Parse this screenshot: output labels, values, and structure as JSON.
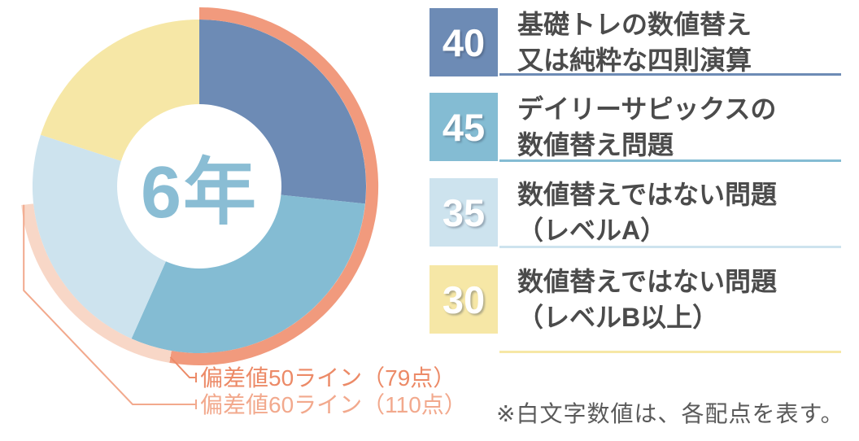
{
  "chart_data": {
    "type": "pie",
    "subtype": "donut",
    "center_label": "6年",
    "total": 150,
    "start_angle": "top",
    "direction": "clockwise",
    "segments": [
      {
        "label": "基礎トレの数値替え 又は純粋な四則演算",
        "value": 40,
        "color": "#6d8bb5"
      },
      {
        "label": "デイリーサピックスの数値替え問題",
        "value": 45,
        "color": "#84bcd3"
      },
      {
        "label": "数値替えではない問題（レベルA）",
        "value": 35,
        "color": "#cde3ee"
      },
      {
        "label": "数値替えではない問題（レベルB以上）",
        "value": 30,
        "color": "#f6e7a6"
      }
    ],
    "threshold_arcs": [
      {
        "label": "偏差値50ライン（79点）",
        "points": 79,
        "color": "#f19a7d",
        "text_color": "#ec8a67"
      },
      {
        "label": "偏差値60ライン（110点）",
        "points": 110,
        "color": "#f8d7c7",
        "text_color": "#f2a98d"
      }
    ]
  },
  "legend": {
    "items": [
      {
        "value": "40",
        "line1": "基礎トレの数値替え",
        "line2": "又は純粋な四則演算",
        "color": "#6d8bb5"
      },
      {
        "value": "45",
        "line1": "デイリーサピックスの",
        "line2": "数値替え問題",
        "color": "#84bcd3"
      },
      {
        "value": "35",
        "line1": "数値替えではない問題",
        "line2": "（レベルA）",
        "color": "#cde3ee"
      },
      {
        "value": "30",
        "line1": "数値替えではない問題",
        "line2": "（レベルB以上）",
        "color": "#f6e7a6"
      }
    ]
  },
  "annotations": {
    "note": "※白文字数値は、各配点を表す。"
  }
}
